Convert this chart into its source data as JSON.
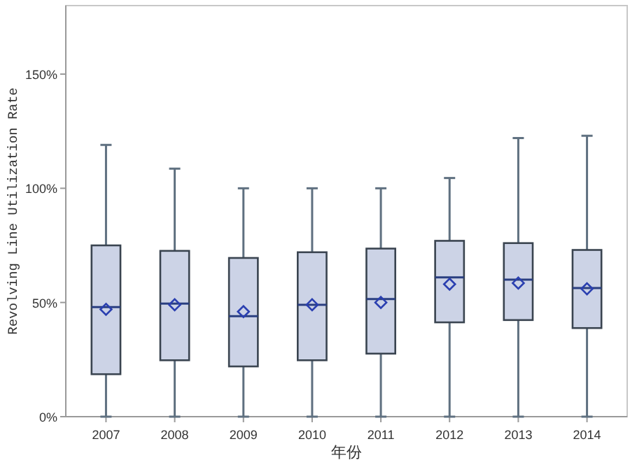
{
  "chart_data": {
    "type": "box",
    "xlabel": "年份",
    "ylabel": "Revolving Line Utilization Rate",
    "categories": [
      "2007",
      "2008",
      "2009",
      "2010",
      "2011",
      "2012",
      "2013",
      "2014"
    ],
    "series": [
      {
        "color": "#ccd3e6",
        "boxes": [
          {
            "low": 0,
            "q1": 18.6,
            "median": 48,
            "q3": 75,
            "high": 119,
            "mean": 47
          },
          {
            "low": 0,
            "q1": 24.7,
            "median": 49.5,
            "q3": 72.6,
            "high": 108.6,
            "mean": 49
          },
          {
            "low": 0,
            "q1": 22,
            "median": 44,
            "q3": 69.5,
            "high": 100,
            "mean": 46
          },
          {
            "low": 0,
            "q1": 24.7,
            "median": 49,
            "q3": 72,
            "high": 100,
            "mean": 49
          },
          {
            "low": 0,
            "q1": 27.6,
            "median": 51.5,
            "q3": 73.6,
            "high": 100,
            "mean": 50
          },
          {
            "low": 0,
            "q1": 41.3,
            "median": 61,
            "q3": 77,
            "high": 104.5,
            "mean": 58
          },
          {
            "low": 0,
            "q1": 42.3,
            "median": 60,
            "q3": 76,
            "high": 122,
            "mean": 58.5
          },
          {
            "low": 0,
            "q1": 38.8,
            "median": 56.3,
            "q3": 73,
            "high": 123,
            "mean": 56
          }
        ]
      }
    ],
    "ylim": [
      0,
      180
    ],
    "yticks": [
      {
        "value": 0,
        "label": "0%"
      },
      {
        "value": 50,
        "label": "50%"
      },
      {
        "value": 100,
        "label": "100%"
      },
      {
        "value": 150,
        "label": "150%"
      }
    ],
    "marker": "diamond",
    "grid": false
  }
}
